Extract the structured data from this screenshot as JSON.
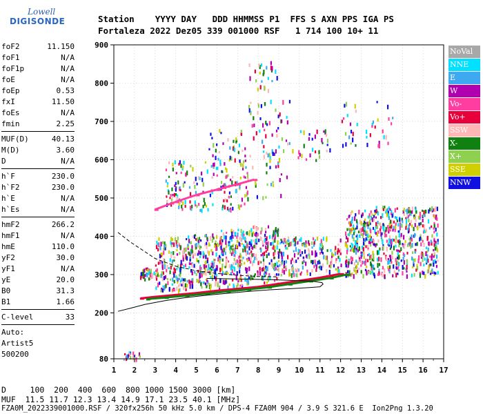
{
  "logo": {
    "line1": "Lowell",
    "line2": "DIGISONDE"
  },
  "header": {
    "labels": "Station    YYYY DAY   DDD HHMMSS P1  FFS S AXN PPS IGA PS",
    "values": "Fortaleza 2022 Dez05 339 001000 RSF   1 714 100 10+ 11"
  },
  "params": [
    [
      {
        "name": "foF2",
        "value": "11.150"
      },
      {
        "name": "foF1",
        "value": "N/A"
      },
      {
        "name": "foF1p",
        "value": "N/A"
      },
      {
        "name": "foE",
        "value": "N/A"
      },
      {
        "name": "foEp",
        "value": "0.53"
      },
      {
        "name": "fxI",
        "value": "11.50"
      },
      {
        "name": "foEs",
        "value": "N/A"
      },
      {
        "name": "fmin",
        "value": "2.25"
      }
    ],
    [
      {
        "name": "MUF(D)",
        "value": "40.13"
      },
      {
        "name": "M(D)",
        "value": "3.60"
      },
      {
        "name": "D",
        "value": "N/A"
      }
    ],
    [
      {
        "name": "h`F",
        "value": "230.0"
      },
      {
        "name": "h`F2",
        "value": "230.0"
      },
      {
        "name": "h`E",
        "value": "N/A"
      },
      {
        "name": "h`Es",
        "value": "N/A"
      }
    ],
    [
      {
        "name": "hmF2",
        "value": "266.2"
      },
      {
        "name": "hmF1",
        "value": "N/A"
      },
      {
        "name": "hmE",
        "value": "110.0"
      },
      {
        "name": "yF2",
        "value": "30.0"
      },
      {
        "name": "yF1",
        "value": "N/A"
      },
      {
        "name": "yE",
        "value": "20.0"
      },
      {
        "name": "B0",
        "value": "31.3"
      },
      {
        "name": "B1",
        "value": "1.66"
      }
    ],
    [
      {
        "name": "C-level",
        "value": "33"
      }
    ]
  ],
  "auto": {
    "line1": "Auto:",
    "line2": "Artist5",
    "line3": "500200"
  },
  "legend": [
    {
      "label": "NoVal",
      "color": "#a8a8a8",
      "text_color": "#ffffff"
    },
    {
      "label": "NNE",
      "color": "#00e0ff",
      "text_color": "#ffffff"
    },
    {
      "label": "E",
      "color": "#3ea8f0",
      "text_color": "#ffffff"
    },
    {
      "label": "W",
      "color": "#b000b0",
      "text_color": "#ffffff"
    },
    {
      "label": "Vo-",
      "color": "#ff3ca0",
      "text_color": "#ffffff"
    },
    {
      "label": "Vo+",
      "color": "#e8003a",
      "text_color": "#ffffff"
    },
    {
      "label": "SSW",
      "color": "#ffb6b6",
      "text_color": "#ffffff"
    },
    {
      "label": "X-",
      "color": "#108010",
      "text_color": "#ffffff"
    },
    {
      "label": "X+",
      "color": "#90d050",
      "text_color": "#ffffff"
    },
    {
      "label": "SSE",
      "color": "#d0d000",
      "text_color": "#ffffff"
    },
    {
      "label": "NNW",
      "color": "#1010e0",
      "text_color": "#ffffff"
    }
  ],
  "footer": {
    "line1": "D     100  200  400  600  800 1000 1500 3000 [km]",
    "line2": "MUF  11.5 11.7 12.3 13.4 14.9 17.1 23.5 40.1 [MHz]",
    "line3": "FZA0M_2022339001000.RSF / 320fx256h 50 kHz 5.0 km / DPS-4 FZA0M 904 / 3.9 S 321.6 E  Ion2Png 1.3.20"
  },
  "chart_data": {
    "type": "scatter",
    "xlim": [
      1,
      17
    ],
    "ylim": [
      80,
      900
    ],
    "x_ticks": [
      1,
      2,
      3,
      4,
      5,
      6,
      7,
      8,
      9,
      10,
      11,
      12,
      13,
      14,
      15,
      16,
      17
    ],
    "y_ticks": [
      80,
      200,
      300,
      400,
      500,
      600,
      700,
      800,
      900
    ],
    "grid": true,
    "xlabel": "",
    "ylabel": "",
    "legend_placement": "right",
    "profile_curve": {
      "style": "solid",
      "points": [
        [
          1.2,
          204
        ],
        [
          1.8,
          212
        ],
        [
          2.5,
          222
        ],
        [
          3.5,
          232
        ],
        [
          4.5,
          240
        ],
        [
          5.5,
          246
        ],
        [
          6.5,
          251
        ],
        [
          7.5,
          256
        ],
        [
          8.5,
          260
        ],
        [
          9.5,
          263
        ],
        [
          10.5,
          266
        ],
        [
          11.0,
          268
        ],
        [
          11.15,
          275
        ],
        [
          11.1,
          279
        ],
        [
          10.6,
          283
        ],
        [
          9.5,
          285
        ],
        [
          8.5,
          287
        ],
        [
          7.5,
          288
        ],
        [
          6.5,
          289
        ],
        [
          5.5,
          290
        ]
      ]
    },
    "profile_curve_upper": {
      "style": "dashed",
      "points": [
        [
          1.2,
          410
        ],
        [
          1.8,
          385
        ],
        [
          2.5,
          360
        ],
        [
          3.0,
          342
        ],
        [
          4.0,
          322
        ],
        [
          5.0,
          310
        ],
        [
          6.0,
          303
        ],
        [
          7.0,
          298
        ],
        [
          8.0,
          295
        ],
        [
          9.0,
          294
        ]
      ]
    },
    "o_trace": {
      "color": "#e8003a",
      "points": [
        [
          2.3,
          238
        ],
        [
          3.0,
          242
        ],
        [
          4.0,
          247
        ],
        [
          5.0,
          252
        ],
        [
          6.0,
          258
        ],
        [
          7.0,
          263
        ],
        [
          8.0,
          268
        ],
        [
          9.0,
          276
        ],
        [
          10.0,
          284
        ],
        [
          11.0,
          292
        ],
        [
          11.5,
          297
        ],
        [
          12.0,
          302
        ]
      ]
    },
    "x_trace": {
      "color": "#108010",
      "points": [
        [
          2.6,
          236
        ],
        [
          3.5,
          240
        ],
        [
          4.5,
          245
        ],
        [
          5.5,
          250
        ],
        [
          6.5,
          256
        ],
        [
          7.5,
          261
        ],
        [
          8.5,
          267
        ],
        [
          9.5,
          275
        ],
        [
          10.5,
          283
        ],
        [
          11.5,
          291
        ],
        [
          12.3,
          300
        ]
      ]
    },
    "second_hop_trace": {
      "color": "#ff3ca0",
      "points": [
        [
          3.0,
          470
        ],
        [
          4.0,
          490
        ],
        [
          5.0,
          508
        ],
        [
          6.0,
          522
        ],
        [
          7.0,
          536
        ],
        [
          7.8,
          548
        ]
      ]
    },
    "echo_clusters": [
      {
        "x": [
          2.2,
          3.0
        ],
        "y": [
          290,
          320
        ],
        "density": 40
      },
      {
        "x": [
          3.0,
          4.5
        ],
        "y": [
          260,
          400
        ],
        "density": 160
      },
      {
        "x": [
          4.5,
          6.0
        ],
        "y": [
          270,
          410
        ],
        "density": 200
      },
      {
        "x": [
          6.0,
          7.5
        ],
        "y": [
          270,
          420
        ],
        "density": 190
      },
      {
        "x": [
          7.5,
          9.0
        ],
        "y": [
          280,
          430
        ],
        "density": 170
      },
      {
        "x": [
          9.0,
          10.5
        ],
        "y": [
          300,
          400
        ],
        "density": 110
      },
      {
        "x": [
          10.5,
          12.0
        ],
        "y": [
          310,
          400
        ],
        "density": 80
      },
      {
        "x": [
          12.2,
          13.5
        ],
        "y": [
          300,
          470
        ],
        "density": 220
      },
      {
        "x": [
          13.5,
          15.0
        ],
        "y": [
          300,
          480
        ],
        "density": 220
      },
      {
        "x": [
          15.0,
          16.7
        ],
        "y": [
          300,
          480
        ],
        "density": 230
      },
      {
        "x": [
          3.5,
          5.5
        ],
        "y": [
          470,
          600
        ],
        "density": 90
      },
      {
        "x": [
          5.5,
          7.5
        ],
        "y": [
          470,
          680
        ],
        "density": 120
      },
      {
        "x": [
          7.5,
          9.5
        ],
        "y": [
          500,
          760
        ],
        "density": 80
      },
      {
        "x": [
          9.5,
          11.5
        ],
        "y": [
          600,
          680
        ],
        "density": 30
      },
      {
        "x": [
          12.0,
          14.5
        ],
        "y": [
          640,
          760
        ],
        "density": 40
      },
      {
        "x": [
          7.5,
          9.0
        ],
        "y": [
          780,
          860
        ],
        "density": 25
      },
      {
        "x": [
          1.5,
          2.3
        ],
        "y": [
          80,
          100
        ],
        "density": 20
      }
    ]
  }
}
